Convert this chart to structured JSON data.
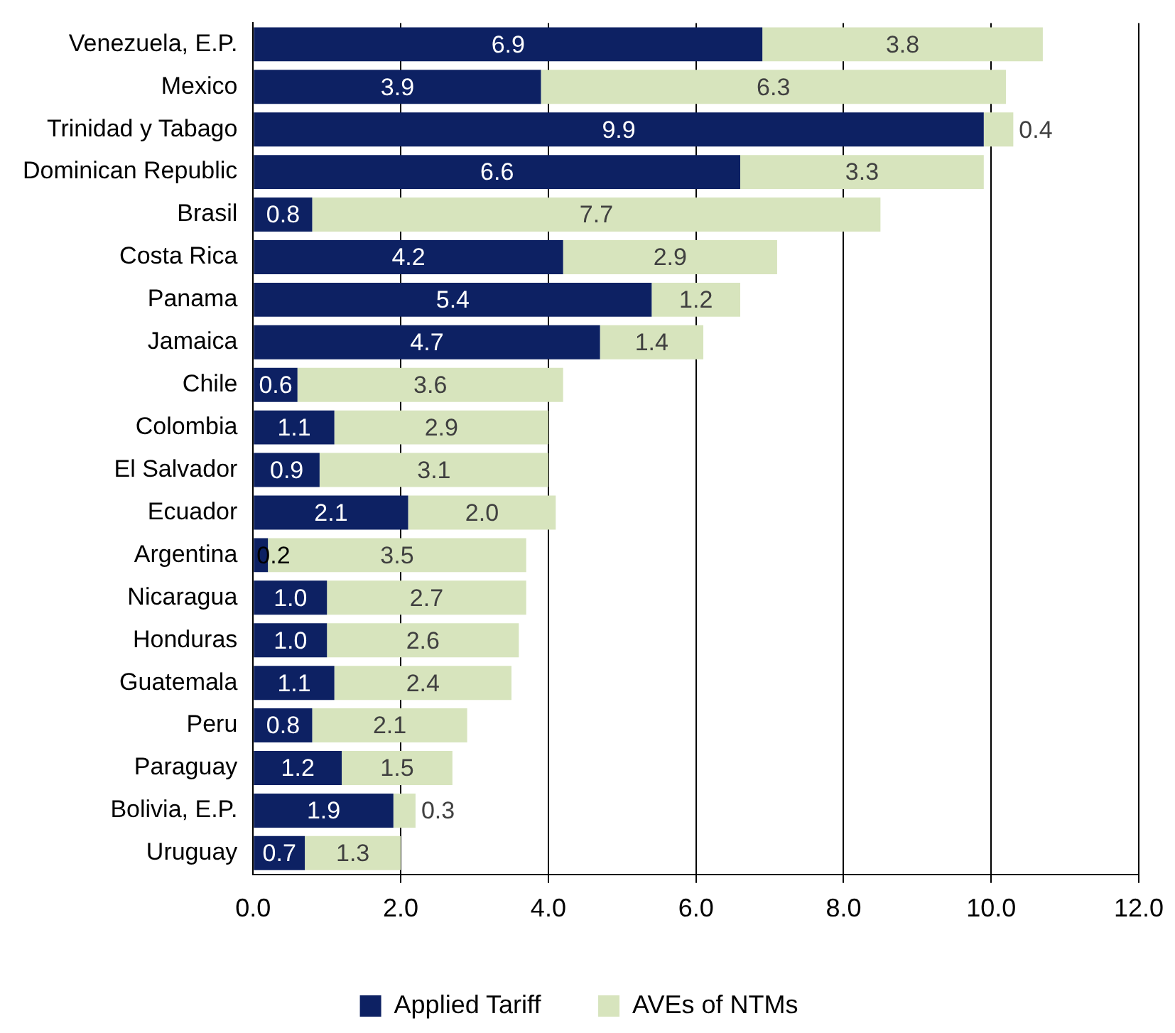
{
  "chart_data": {
    "type": "bar",
    "orientation": "horizontal",
    "stacked": true,
    "categories": [
      "Venezuela, E.P.",
      "Mexico",
      "Trinidad y Tabago",
      "Dominican Republic",
      "Brasil",
      "Costa Rica",
      "Panama",
      "Jamaica",
      "Chile",
      "Colombia",
      "El Salvador",
      "Ecuador",
      "Argentina",
      "Nicaragua",
      "Honduras",
      "Guatemala",
      "Peru",
      "Paraguay",
      "Bolivia, E.P.",
      "Uruguay"
    ],
    "series": [
      {
        "name": "Applied Tariff",
        "color": "#0d2163",
        "values": [
          6.9,
          3.9,
          9.9,
          6.6,
          0.8,
          4.2,
          5.4,
          4.7,
          0.6,
          1.1,
          0.9,
          2.1,
          0.2,
          1.0,
          1.0,
          1.1,
          0.8,
          1.2,
          1.9,
          0.7
        ],
        "value_labels": [
          "6.9",
          "3.9",
          "9.9",
          "6.6",
          "0.8",
          "4.2",
          "5.4",
          "4.7",
          "0.6",
          "1.1",
          "0.9",
          "2.1",
          "0.2",
          "1.0",
          "1.0",
          "1.1",
          "0.8",
          "1.2",
          "1.9",
          "0.7"
        ]
      },
      {
        "name": "AVEs of NTMs",
        "color": "#d7e4bd",
        "values": [
          3.8,
          6.3,
          0.4,
          3.3,
          7.7,
          2.9,
          1.2,
          1.4,
          3.6,
          2.9,
          3.1,
          2.0,
          3.5,
          2.7,
          2.6,
          2.4,
          2.1,
          1.5,
          0.3,
          1.3
        ],
        "value_labels": [
          "3.8",
          "6.3",
          "0.4",
          "3.3",
          "7.7",
          "2.9",
          "1.2",
          "1.4",
          "3.6",
          "2.9",
          "3.1",
          "2.0",
          "3.5",
          "2.7",
          "2.6",
          "2.4",
          "2.1",
          "1.5",
          "0.3",
          "1.3"
        ]
      }
    ],
    "xlim": [
      0,
      12
    ],
    "xticks": [
      {
        "value": 0,
        "label": "0.0"
      },
      {
        "value": 2,
        "label": "2.0"
      },
      {
        "value": 4,
        "label": "4.0"
      },
      {
        "value": 6,
        "label": "6.0"
      },
      {
        "value": 8,
        "label": "8.0"
      },
      {
        "value": 10,
        "label": "10.0"
      },
      {
        "value": 12,
        "label": "12.0"
      }
    ],
    "grid": "x",
    "legend": "bottom"
  }
}
